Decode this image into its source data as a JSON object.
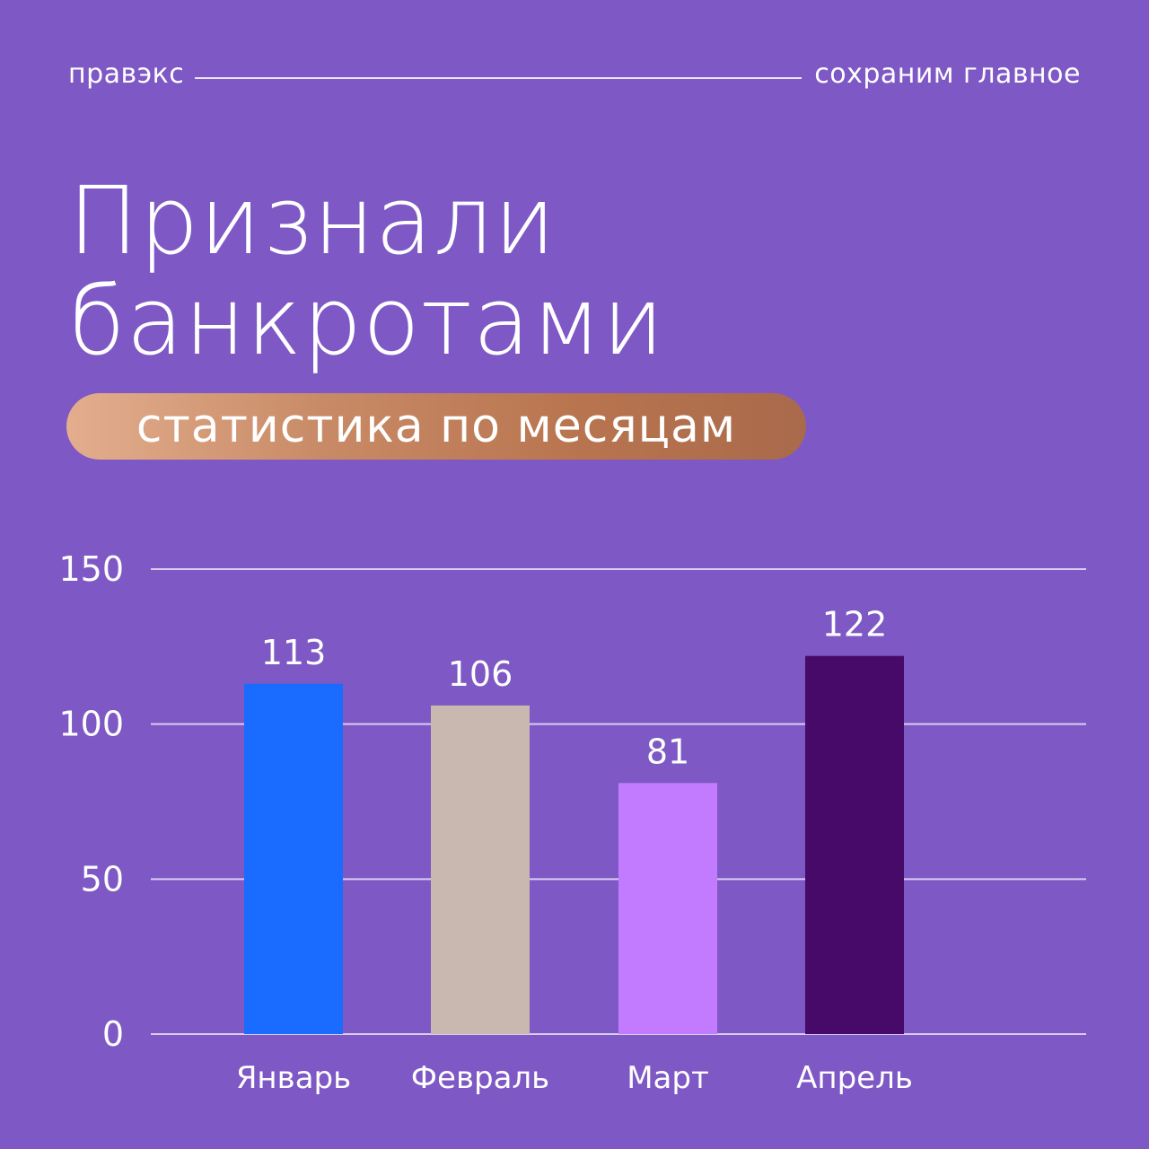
{
  "header": {
    "brand": "правэкс",
    "slogan": "сохраним главное"
  },
  "title": {
    "line1": "Признали",
    "line2": "банкротами"
  },
  "subtitle_pill": "статистика по месяцам",
  "colors": {
    "background": "#7e58c4",
    "gridline": "#d9cdf0"
  },
  "chart_data": {
    "type": "bar",
    "categories": [
      "Январь",
      "Февраль",
      "Март",
      "Апрель"
    ],
    "values": [
      113,
      106,
      81,
      122
    ],
    "value_labels": [
      "113",
      "106",
      "81",
      "122"
    ],
    "bar_colors": [
      "#1a6bff",
      "#c9b8b0",
      "#c27bff",
      "#470a69"
    ],
    "yticks": [
      0,
      50,
      100,
      150
    ],
    "ylim": [
      0,
      150
    ],
    "grid": true
  }
}
